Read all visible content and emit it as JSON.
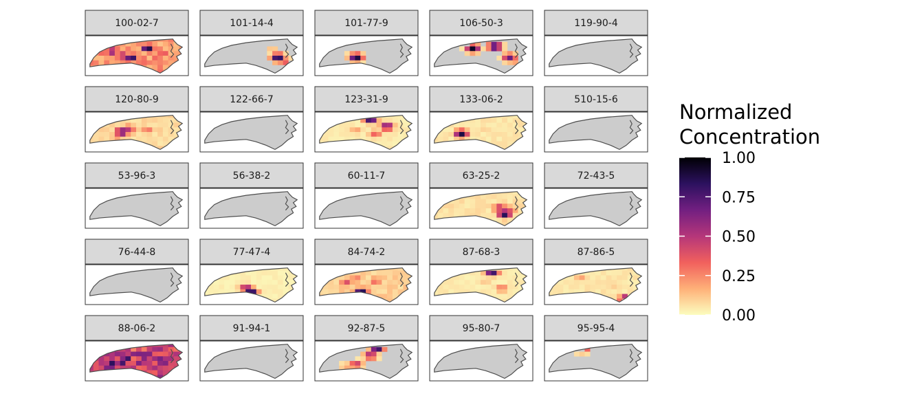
{
  "chart_data": {
    "type": "heatmap",
    "description_type": "faceted choropleth maps",
    "legend": {
      "title_lines": [
        "Normalized",
        "Concentration"
      ],
      "ticks": [
        "1.00",
        "0.75",
        "0.50",
        "0.25",
        "0.00"
      ],
      "tick_values": [
        1.0,
        0.75,
        0.5,
        0.25,
        0.0
      ],
      "range": [
        0,
        1
      ],
      "palette": [
        "#fcfdbf",
        "#feb078",
        "#f1605d",
        "#b5367a",
        "#721f81",
        "#2c115f",
        "#000004"
      ]
    },
    "colors": {
      "strip_fill": "#d9d9d9",
      "no_data": "#cccccc",
      "state_outline": "#4d4d4d",
      "panel_border": "#333333"
    },
    "facets": [
      {
        "label": "100-02-7",
        "base": 0.22,
        "hotspots": [
          [
            0.62,
            0.3,
            0.95
          ],
          [
            0.45,
            0.55,
            0.9
          ],
          [
            0.25,
            0.38,
            0.7
          ],
          [
            0.78,
            0.45,
            0.4
          ],
          [
            0.35,
            0.5,
            0.6
          ]
        ]
      },
      {
        "label": "101-14-4",
        "base": null,
        "hotspots": [
          [
            0.78,
            0.55,
            0.95
          ],
          [
            0.72,
            0.35,
            0.15
          ],
          [
            0.85,
            0.65,
            0.4
          ]
        ]
      },
      {
        "label": "101-77-9",
        "base": null,
        "hotspots": [
          [
            0.4,
            0.55,
            0.95
          ],
          [
            0.3,
            0.5,
            0.1
          ],
          [
            0.48,
            0.45,
            0.08
          ]
        ]
      },
      {
        "label": "106-50-3",
        "base": null,
        "hotspots": [
          [
            0.42,
            0.3,
            0.95
          ],
          [
            0.65,
            0.25,
            0.95
          ],
          [
            0.8,
            0.55,
            0.7
          ],
          [
            0.85,
            0.7,
            0.2
          ]
        ]
      },
      {
        "label": "119-90-4",
        "base": null,
        "hotspots": []
      },
      {
        "label": "120-80-9",
        "base": 0.08,
        "hotspots": [
          [
            0.35,
            0.5,
            0.8
          ],
          [
            0.42,
            0.42,
            0.5
          ],
          [
            0.62,
            0.45,
            0.3
          ],
          [
            0.3,
            0.7,
            0.2
          ]
        ]
      },
      {
        "label": "122-66-7",
        "base": null,
        "hotspots": []
      },
      {
        "label": "123-31-9",
        "base": 0.04,
        "hotspots": [
          [
            0.55,
            0.15,
            0.95
          ],
          [
            0.72,
            0.35,
            0.7
          ],
          [
            0.6,
            0.55,
            0.35
          ],
          [
            0.4,
            0.45,
            0.2
          ]
        ]
      },
      {
        "label": "133-06-2",
        "base": 0.05,
        "hotspots": [
          [
            0.3,
            0.55,
            0.9
          ],
          [
            0.55,
            0.45,
            0.1
          ]
        ]
      },
      {
        "label": "510-15-6",
        "base": null,
        "hotspots": []
      },
      {
        "label": "53-96-3",
        "base": null,
        "hotspots": []
      },
      {
        "label": "56-38-2",
        "base": null,
        "hotspots": []
      },
      {
        "label": "60-11-7",
        "base": null,
        "hotspots": []
      },
      {
        "label": "63-25-2",
        "base": 0.06,
        "hotspots": [
          [
            0.75,
            0.65,
            0.95
          ],
          [
            0.7,
            0.5,
            0.55
          ],
          [
            0.8,
            0.55,
            0.4
          ],
          [
            0.5,
            0.4,
            0.1
          ]
        ]
      },
      {
        "label": "72-43-5",
        "base": null,
        "hotspots": []
      },
      {
        "label": "76-44-8",
        "base": null,
        "hotspots": []
      },
      {
        "label": "77-47-4",
        "base": 0.03,
        "hotspots": [
          [
            0.5,
            0.7,
            0.95
          ],
          [
            0.45,
            0.6,
            0.6
          ]
        ]
      },
      {
        "label": "84-74-2",
        "base": 0.1,
        "hotspots": [
          [
            0.45,
            0.7,
            0.95
          ],
          [
            0.3,
            0.45,
            0.4
          ],
          [
            0.6,
            0.4,
            0.35
          ],
          [
            0.4,
            0.35,
            0.3
          ]
        ]
      },
      {
        "label": "87-68-3",
        "base": 0.04,
        "hotspots": [
          [
            0.62,
            0.15,
            0.95
          ],
          [
            0.72,
            0.6,
            0.3
          ],
          [
            0.55,
            0.45,
            0.12
          ]
        ]
      },
      {
        "label": "87-86-5",
        "base": 0.05,
        "hotspots": [
          [
            0.82,
            0.9,
            0.95
          ],
          [
            0.35,
            0.3,
            0.2
          ],
          [
            0.7,
            0.55,
            0.1
          ]
        ]
      },
      {
        "label": "88-06-2",
        "base": 0.45,
        "hotspots": [
          [
            0.4,
            0.4,
            0.95
          ],
          [
            0.25,
            0.55,
            0.85
          ],
          [
            0.55,
            0.35,
            0.8
          ],
          [
            0.7,
            0.4,
            0.6
          ],
          [
            0.35,
            0.6,
            0.9
          ]
        ]
      },
      {
        "label": "91-94-1",
        "base": null,
        "hotspots": []
      },
      {
        "label": "92-87-5",
        "base": null,
        "hotspots": [
          [
            0.55,
            0.35,
            0.6
          ],
          [
            0.4,
            0.6,
            0.5
          ],
          [
            0.62,
            0.15,
            0.95
          ],
          [
            0.3,
            0.65,
            0.2
          ]
        ]
      },
      {
        "label": "95-80-7",
        "base": null,
        "hotspots": []
      },
      {
        "label": "95-95-4",
        "base": null,
        "hotspots": [
          [
            0.35,
            0.15,
            0.95
          ],
          [
            0.4,
            0.25,
            0.1
          ]
        ]
      }
    ]
  }
}
